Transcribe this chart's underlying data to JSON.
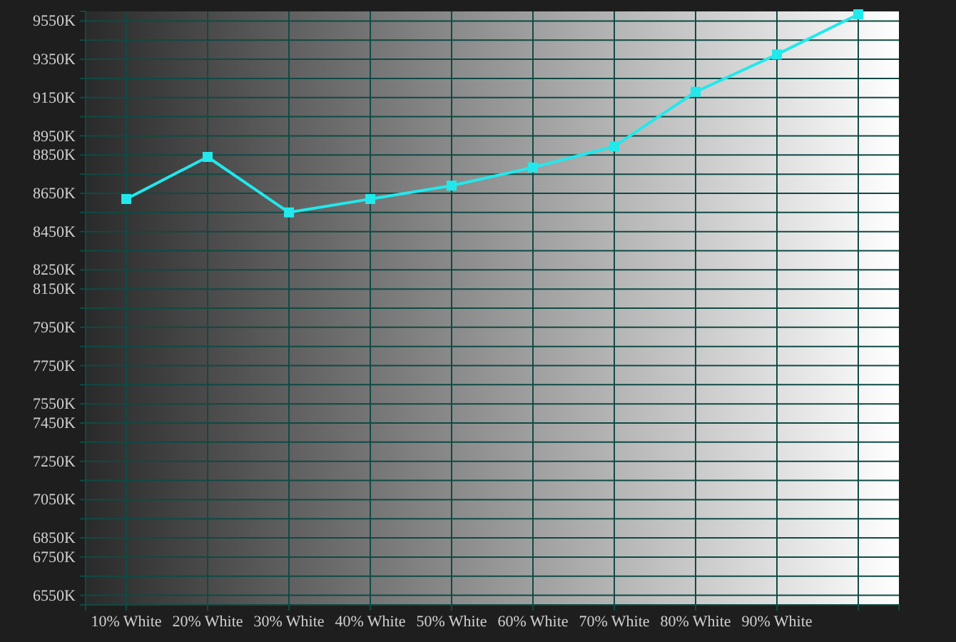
{
  "chart_data": {
    "type": "line",
    "categories": [
      "10% White",
      "20% White",
      "30% White",
      "40% White",
      "50% White",
      "60% White",
      "70% White",
      "80% White",
      "90% White",
      null
    ],
    "series": [
      {
        "color": "#22e8ec",
        "values": [
          8620,
          8840,
          8550,
          8620,
          8690,
          8785,
          8895,
          9180,
          9375,
          9585
        ]
      }
    ],
    "ylim": [
      6500,
      9600
    ],
    "yticks": [
      {
        "value": 6550,
        "label": "6550K"
      },
      {
        "value": 6650,
        "label": null
      },
      {
        "value": 6750,
        "label": "6750K"
      },
      {
        "value": 6850,
        "label": "6850K"
      },
      {
        "value": 6950,
        "label": null
      },
      {
        "value": 7050,
        "label": "7050K"
      },
      {
        "value": 7150,
        "label": null
      },
      {
        "value": 7250,
        "label": "7250K"
      },
      {
        "value": 7350,
        "label": null
      },
      {
        "value": 7450,
        "label": "7450K"
      },
      {
        "value": 7550,
        "label": "7550K"
      },
      {
        "value": 7650,
        "label": null
      },
      {
        "value": 7750,
        "label": "7750K"
      },
      {
        "value": 7850,
        "label": null
      },
      {
        "value": 7950,
        "label": "7950K"
      },
      {
        "value": 8050,
        "label": null
      },
      {
        "value": 8150,
        "label": "8150K"
      },
      {
        "value": 8250,
        "label": "8250K"
      },
      {
        "value": 8350,
        "label": null
      },
      {
        "value": 8450,
        "label": "8450K"
      },
      {
        "value": 8550,
        "label": null
      },
      {
        "value": 8650,
        "label": "8650K"
      },
      {
        "value": 8750,
        "label": null
      },
      {
        "value": 8850,
        "label": "8850K"
      },
      {
        "value": 8950,
        "label": "8950K"
      },
      {
        "value": 9050,
        "label": null
      },
      {
        "value": 9150,
        "label": "9150K"
      },
      {
        "value": 9250,
        "label": null
      },
      {
        "value": 9350,
        "label": "9350K"
      },
      {
        "value": 9450,
        "label": null
      },
      {
        "value": 9550,
        "label": "9550K"
      }
    ],
    "grid": true,
    "marker": "square",
    "line_style": "solid"
  }
}
